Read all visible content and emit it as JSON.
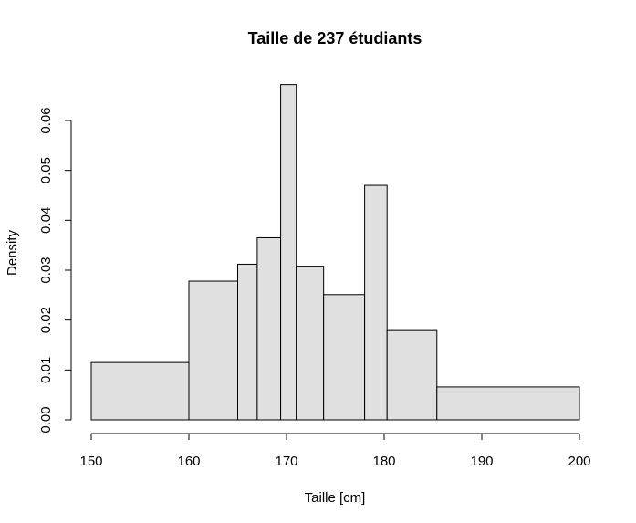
{
  "chart_data": {
    "type": "bar",
    "title": "Taille de 237 étudiants",
    "xlabel": "Taille [cm]",
    "ylabel": "Density",
    "xlim": [
      150,
      200
    ],
    "ylim": [
      0,
      0.06
    ],
    "xticks": [
      "150",
      "160",
      "170",
      "180",
      "190",
      "200"
    ],
    "xtick_values": [
      150,
      160,
      170,
      180,
      190,
      200
    ],
    "yticks": [
      "0.00",
      "0.01",
      "0.02",
      "0.03",
      "0.04",
      "0.05",
      "0.06"
    ],
    "ytick_values": [
      0,
      0.01,
      0.02,
      0.03,
      0.04,
      0.05,
      0.06
    ],
    "grid": false,
    "bar_fill": "#e0e0e0",
    "bins": [
      {
        "start": 150,
        "end": 160,
        "density": 0.0115
      },
      {
        "start": 160,
        "end": 165,
        "density": 0.0278
      },
      {
        "start": 165,
        "end": 167,
        "density": 0.0312
      },
      {
        "start": 167,
        "end": 169.4,
        "density": 0.0365
      },
      {
        "start": 169.4,
        "end": 171,
        "density": 0.0672
      },
      {
        "start": 171,
        "end": 173.8,
        "density": 0.0308
      },
      {
        "start": 173.8,
        "end": 178,
        "density": 0.0251
      },
      {
        "start": 178,
        "end": 180.3,
        "density": 0.047
      },
      {
        "start": 180.3,
        "end": 185.4,
        "density": 0.0179
      },
      {
        "start": 185.4,
        "end": 200,
        "density": 0.0066
      }
    ]
  }
}
